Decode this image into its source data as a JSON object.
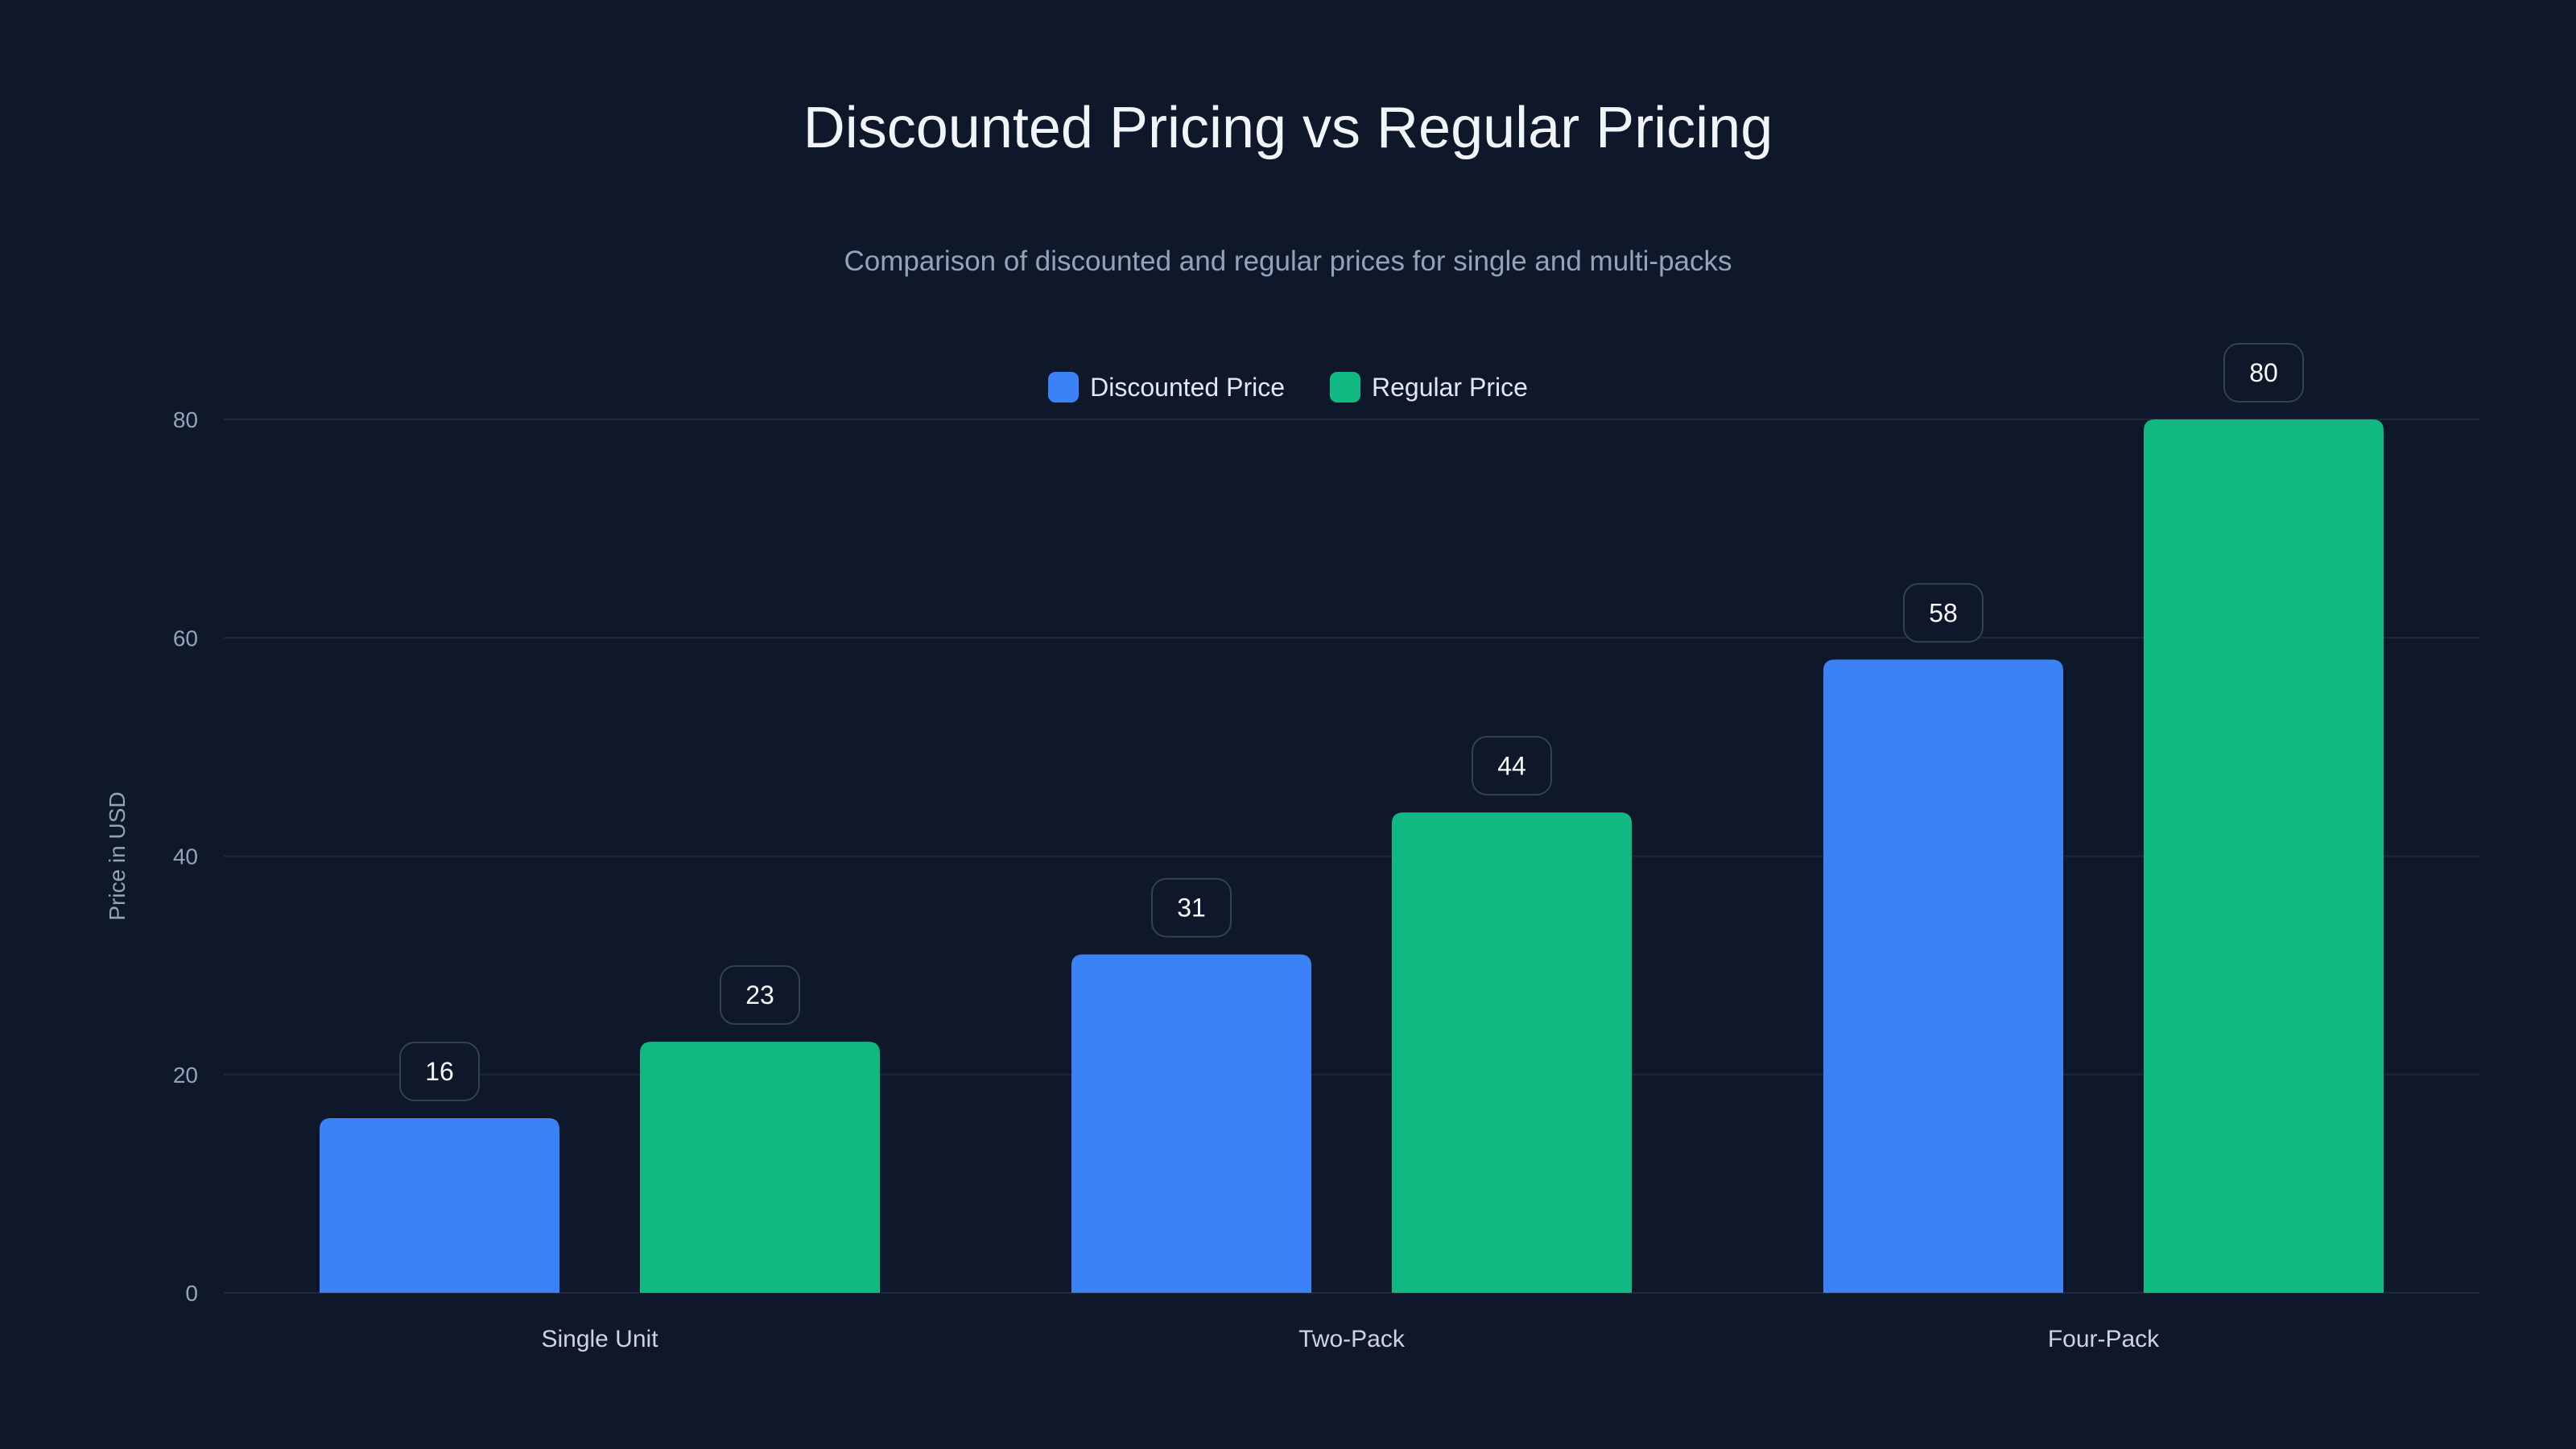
{
  "chart_data": {
    "type": "bar",
    "title": "Discounted Pricing vs Regular Pricing",
    "subtitle": "Comparison of discounted and regular prices for single and multi-packs",
    "xlabel": "",
    "ylabel": "Price in USD",
    "categories": [
      "Single Unit",
      "Two-Pack",
      "Four-Pack"
    ],
    "series": [
      {
        "name": "Discounted Price",
        "values": [
          16,
          31,
          58
        ],
        "color": "#3b82f6"
      },
      {
        "name": "Regular Price",
        "values": [
          23,
          44,
          80
        ],
        "color": "#10b981"
      }
    ],
    "ylim": [
      0,
      80
    ],
    "yticks": [
      0,
      20,
      40,
      60,
      80
    ],
    "grid": true,
    "legend": "top-center",
    "data_labels": true
  },
  "colors": {
    "background": "#0f172a",
    "grid": "#1e293b",
    "label_border": "#334155"
  }
}
